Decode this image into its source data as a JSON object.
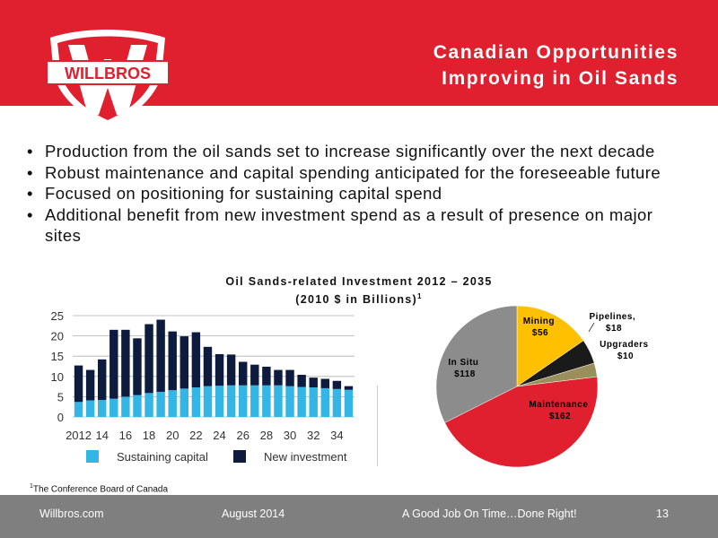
{
  "header": {
    "title_line1": "Canadian Opportunities",
    "title_line2": "Improving in Oil Sands",
    "logo_text": "WILLBROS",
    "colors": {
      "brand_red": "#e0202e",
      "white": "#ffffff"
    }
  },
  "bullets": [
    "Production from the oil sands set to increase significantly over the next decade",
    "Robust maintenance and capital spending anticipated for the foreseeable future",
    "Focused on positioning for sustaining capital spend",
    "Additional benefit from new investment spend as a result of presence on major sites"
  ],
  "bullet_symbol": "•",
  "chart_heading": {
    "line1": "Oil Sands-related Investment 2012 – 2035",
    "line2": "(2010 $ in Billions)",
    "footnote_mark": "1"
  },
  "chart_data": [
    {
      "type": "bar",
      "stacked": true,
      "categories": [
        "2012",
        "2013",
        "2014",
        "2015",
        "2016",
        "2017",
        "2018",
        "2019",
        "2020",
        "2021",
        "2022",
        "2023",
        "2024",
        "2025",
        "2026",
        "2027",
        "2028",
        "2029",
        "2030",
        "2031",
        "2032",
        "2033",
        "2034",
        "2035"
      ],
      "tick_labels": [
        "2012",
        "14",
        "16",
        "18",
        "20",
        "22",
        "24",
        "26",
        "28",
        "30",
        "32",
        "34"
      ],
      "series": [
        {
          "name": "Sustaining capital",
          "color": "#33b5e5",
          "values": [
            3.7,
            4.1,
            4.2,
            4.5,
            5.0,
            5.4,
            5.9,
            6.2,
            6.6,
            7.0,
            7.3,
            7.6,
            7.7,
            7.8,
            7.8,
            7.8,
            7.8,
            7.8,
            7.6,
            7.4,
            7.3,
            7.1,
            6.9,
            6.7
          ]
        },
        {
          "name": "New investment",
          "color": "#0d1b3e",
          "values": [
            9.0,
            7.5,
            10.0,
            17.0,
            16.5,
            14.0,
            17.0,
            17.8,
            14.5,
            12.9,
            13.6,
            9.7,
            7.8,
            7.6,
            5.8,
            5.1,
            4.6,
            3.8,
            4.0,
            3.0,
            2.4,
            2.3,
            2.0,
            0.9
          ]
        }
      ],
      "ylim": [
        0,
        25
      ],
      "yticks": [
        0,
        5,
        10,
        15,
        20,
        25
      ],
      "grid": true,
      "legend": "bottom"
    },
    {
      "type": "pie",
      "slices": [
        {
          "label": "Mining",
          "value_label": "$56",
          "value": 56,
          "color": "#ffc000"
        },
        {
          "label": "Pipelines,",
          "value_label": "$18",
          "value": 18,
          "color": "#1a1a1a"
        },
        {
          "label": "Upgraders",
          "value_label": "$10",
          "value": 10,
          "color": "#9a8f5a"
        },
        {
          "label": "Maintenance",
          "value_label": "$162",
          "value": 162,
          "color": "#e0202e"
        },
        {
          "label": "In Situ",
          "value_label": "$118",
          "value": 118,
          "color": "#8c8c8c"
        }
      ]
    }
  ],
  "footnote": {
    "mark": "1",
    "text": "The Conference Board of Canada"
  },
  "footer": {
    "website": "Willbros.com",
    "date": "August  2014",
    "tagline": "A Good Job On Time…Done Right!",
    "page_number": "13",
    "color": "#7f7f7f"
  }
}
